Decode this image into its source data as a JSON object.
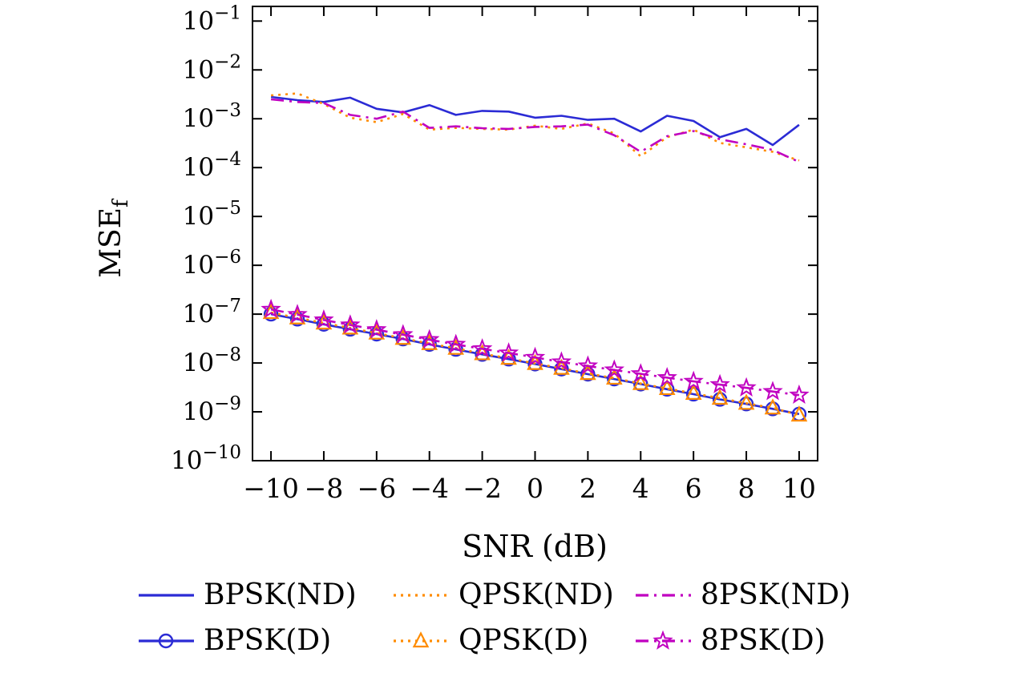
{
  "chart_data": {
    "type": "line",
    "title": "",
    "xlabel": "SNR (dB)",
    "ylabel": "MSE",
    "ylabel_sub": "f",
    "y_scale": "log",
    "grid": false,
    "legend_position": "bottom",
    "xlim": [
      -10.7,
      10.7
    ],
    "ylim_exponents": [
      -10,
      -0.7
    ],
    "x_ticks": [
      -10,
      -8,
      -6,
      -4,
      -2,
      0,
      2,
      4,
      6,
      8,
      10
    ],
    "y_tick_exponents": [
      -1,
      -2,
      -3,
      -4,
      -5,
      -6,
      -7,
      -8,
      -9,
      -10
    ],
    "x": [
      -10,
      -9,
      -8,
      -7,
      -6,
      -5,
      -4,
      -3,
      -2,
      -1,
      0,
      1,
      2,
      3,
      4,
      5,
      6,
      7,
      8,
      9,
      10
    ],
    "series": [
      {
        "name": "BPSK(ND)",
        "color": "#2b2bd5",
        "dash": "solid",
        "marker": "none",
        "values": [
          0.0028,
          0.0024,
          0.0022,
          0.0027,
          0.0016,
          0.00135,
          0.0019,
          0.0012,
          0.00145,
          0.0014,
          0.00105,
          0.00115,
          0.00095,
          0.001,
          0.00055,
          0.00115,
          0.0009,
          0.00042,
          0.00062,
          0.00029,
          0.00075
        ]
      },
      {
        "name": "QPSK(ND)",
        "color": "#ff8c00",
        "dash": "dotted",
        "marker": "none",
        "values": [
          0.003,
          0.0033,
          0.002,
          0.00105,
          0.00085,
          0.00125,
          0.0006,
          0.00065,
          0.00062,
          0.0006,
          0.00072,
          0.00062,
          0.0008,
          0.0005,
          0.00017,
          0.00042,
          0.0006,
          0.00032,
          0.00026,
          0.00021,
          0.00014
        ]
      },
      {
        "name": "8PSK(ND)",
        "color": "#c000c0",
        "dash": "dashdot",
        "marker": "none",
        "values": [
          0.0025,
          0.0022,
          0.0021,
          0.0012,
          0.001,
          0.0014,
          0.00065,
          0.0007,
          0.00064,
          0.00062,
          0.00068,
          0.0007,
          0.00076,
          0.00046,
          0.00021,
          0.00044,
          0.00056,
          0.00038,
          0.0003,
          0.00023,
          0.00013
        ]
      },
      {
        "name": "BPSK(D)",
        "color": "#2b2bd5",
        "dash": "solid",
        "marker": "circle",
        "values": [
          1e-07,
          7.9e-08,
          6.2e-08,
          4.9e-08,
          3.9e-08,
          3.1e-08,
          2.4e-08,
          1.9e-08,
          1.5e-08,
          1.2e-08,
          9.5e-09,
          7.5e-09,
          5.9e-09,
          4.7e-09,
          3.7e-09,
          2.9e-09,
          2.3e-09,
          1.8e-09,
          1.45e-09,
          1.15e-09,
          9e-10
        ]
      },
      {
        "name": "QPSK(D)",
        "color": "#ff8c00",
        "dash": "dotted",
        "marker": "triangle",
        "values": [
          1.08e-07,
          8.4e-08,
          6.6e-08,
          5.2e-08,
          4.1e-08,
          3.2e-08,
          2.5e-08,
          2e-08,
          1.55e-08,
          1.25e-08,
          9.8e-09,
          7.8e-09,
          6.1e-09,
          4.9e-09,
          3.8e-09,
          3e-09,
          2.4e-09,
          1.9e-09,
          1.5e-09,
          1.2e-09,
          8.6e-10
        ]
      },
      {
        "name": "8PSK(D)",
        "color": "#c000c0",
        "dash": "dashdot",
        "marker": "star",
        "values": [
          1.25e-07,
          9.8e-08,
          7.6e-08,
          6e-08,
          4.8e-08,
          3.8e-08,
          3e-08,
          2.4e-08,
          1.95e-08,
          1.6e-08,
          1.3e-08,
          1.05e-08,
          8.7e-09,
          7.2e-09,
          6e-09,
          5e-09,
          4.2e-09,
          3.6e-09,
          3.1e-09,
          2.6e-09,
          2.2e-09
        ]
      }
    ]
  }
}
